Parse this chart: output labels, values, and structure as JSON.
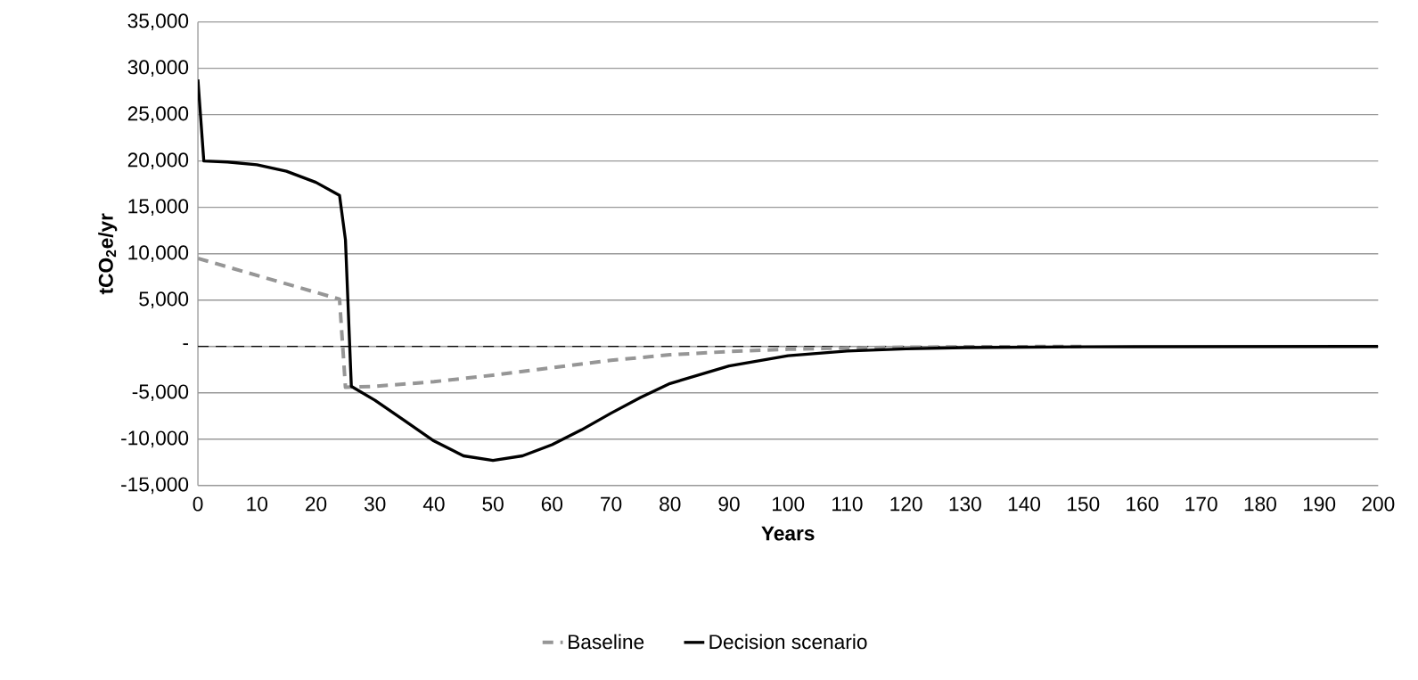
{
  "chart_data": {
    "type": "line",
    "xlabel": "Years",
    "ylabel": "tCO$_{2}$e/yr",
    "xlim": [
      0,
      200
    ],
    "ylim": [
      -15000,
      35000
    ],
    "xticks": [
      0,
      10,
      20,
      30,
      40,
      50,
      60,
      70,
      80,
      90,
      100,
      110,
      120,
      130,
      140,
      150,
      160,
      170,
      180,
      190,
      200
    ],
    "yticks": [
      {
        "value": -15000,
        "label": "-15,000"
      },
      {
        "value": -10000,
        "label": "-10,000"
      },
      {
        "value": -5000,
        "label": "-5,000"
      },
      {
        "value": 0,
        "label": "-"
      },
      {
        "value": 5000,
        "label": "5,000"
      },
      {
        "value": 10000,
        "label": "10,000"
      },
      {
        "value": 15000,
        "label": "15,000"
      },
      {
        "value": 20000,
        "label": "20,000"
      },
      {
        "value": 25000,
        "label": "25,000"
      },
      {
        "value": 30000,
        "label": "30,000"
      },
      {
        "value": 35000,
        "label": "35,000"
      }
    ],
    "grid": "y",
    "legend": "bottom",
    "ref_lines": [
      {
        "axis": "y",
        "value": 0,
        "color": "#000000",
        "line_style": "dashed"
      }
    ],
    "series": [
      {
        "name": "Baseline",
        "color": "#969696",
        "line_style": "dashed",
        "x": [
          0,
          24,
          25,
          30,
          40,
          50,
          60,
          70,
          80,
          90,
          100,
          110,
          120,
          130,
          150
        ],
        "values": [
          9500,
          5100,
          -4400,
          -4300,
          -3800,
          -3100,
          -2300,
          -1500,
          -900,
          -550,
          -300,
          -150,
          -80,
          -30,
          0
        ]
      },
      {
        "name": "Decision scenario",
        "color": "#000000",
        "line_style": "solid",
        "x": [
          0,
          1,
          5,
          10,
          15,
          20,
          24,
          25,
          26,
          30,
          35,
          40,
          45,
          50,
          55,
          60,
          65,
          70,
          75,
          80,
          90,
          100,
          110,
          120,
          130,
          150,
          200
        ],
        "values": [
          28800,
          20000,
          19900,
          19600,
          18900,
          17700,
          16300,
          11500,
          -4300,
          -5800,
          -8000,
          -10200,
          -11800,
          -12300,
          -11800,
          -10600,
          -9000,
          -7200,
          -5500,
          -4000,
          -2100,
          -1000,
          -500,
          -250,
          -120,
          -30,
          0
        ]
      }
    ]
  }
}
